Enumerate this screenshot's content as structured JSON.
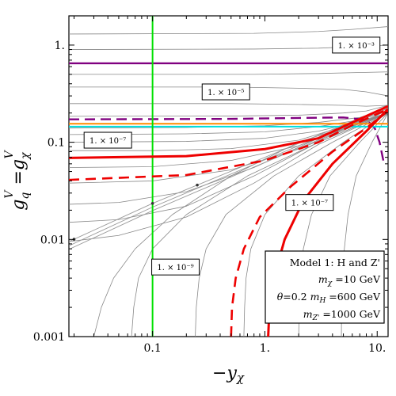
{
  "chart_data": {
    "type": "line",
    "x_scale": "log",
    "y_scale": "log",
    "xlim": [
      0.018,
      12.5
    ],
    "ylim": [
      0.001,
      2.0
    ],
    "xlabel": "−yχ",
    "ylabel": "gqV = gχV",
    "x_ticks": [
      {
        "value": 0.1,
        "label": "0.1"
      },
      {
        "value": 1,
        "label": "1."
      },
      {
        "value": 10,
        "label": "10."
      }
    ],
    "y_ticks": [
      {
        "value": 0.001,
        "label": "0.001"
      },
      {
        "value": 0.01,
        "label": "0.01"
      },
      {
        "value": 0.1,
        "label": "0.1"
      },
      {
        "value": 1,
        "label": "1."
      }
    ],
    "grid": false,
    "contour_labels": [
      {
        "text": "1. × 10⁻³",
        "x": 6.5,
        "y": 1.0
      },
      {
        "text": "1. × 10⁻⁵",
        "x": 0.45,
        "y": 0.33
      },
      {
        "text": "1. × 10⁻⁷",
        "x": 0.04,
        "y": 0.105
      },
      {
        "text": "1. × 10⁻⁷",
        "x": 2.5,
        "y": 0.024
      },
      {
        "text": "1. × 10⁻⁹",
        "x": 0.16,
        "y": 0.0052
      }
    ],
    "legend": {
      "placement": "bottom-right",
      "lines": [
        "Model 1: H and Z'",
        "mχ =10 GeV",
        "θ=0.2 mH =600 GeV",
        "mZ' =1000 GeV"
      ]
    },
    "series": [
      {
        "style": "gray-thin",
        "color": "#888888",
        "x": [
          0.018,
          0.8,
          3,
          6,
          12.5
        ],
        "y": [
          1.3,
          1.32,
          1.38,
          1.45,
          1.55
        ]
      },
      {
        "style": "gray-thin",
        "color": "#888888",
        "x": [
          0.018,
          0.8,
          3,
          6,
          12.5
        ],
        "y": [
          0.9,
          0.91,
          0.93,
          0.96,
          1.0
        ]
      },
      {
        "style": "gray-thin",
        "color": "#888888",
        "x": [
          0.018,
          0.8,
          3,
          6,
          12.5
        ],
        "y": [
          0.5,
          0.5,
          0.51,
          0.52,
          0.53
        ]
      },
      {
        "style": "gray-thin",
        "color": "#888888",
        "x": [
          0.018,
          0.5,
          2,
          5,
          8,
          12.5
        ],
        "y": [
          0.37,
          0.37,
          0.36,
          0.35,
          0.33,
          0.3
        ]
      },
      {
        "style": "gray-thin",
        "color": "#888888",
        "x": [
          0.018,
          0.5,
          2,
          5,
          8,
          12.5
        ],
        "y": [
          0.25,
          0.25,
          0.245,
          0.24,
          0.235,
          0.24
        ]
      },
      {
        "style": "gray-thin",
        "color": "#888888",
        "x": [
          0.018,
          0.5,
          2,
          5,
          8,
          12.5
        ],
        "y": [
          0.185,
          0.186,
          0.19,
          0.2,
          0.21,
          0.24
        ]
      },
      {
        "style": "gray-thin",
        "color": "#888888",
        "x": [
          0.018,
          0.2,
          1,
          3,
          7,
          12.5
        ],
        "y": [
          0.14,
          0.142,
          0.148,
          0.16,
          0.18,
          0.22
        ]
      },
      {
        "style": "gray-thin",
        "color": "#888888",
        "x": [
          0.018,
          0.2,
          1,
          3,
          7,
          12.5
        ],
        "y": [
          0.12,
          0.122,
          0.128,
          0.145,
          0.17,
          0.21
        ]
      },
      {
        "style": "gray-thin",
        "color": "#888888",
        "x": [
          0.018,
          0.2,
          1,
          3,
          7,
          12.5
        ],
        "y": [
          0.1,
          0.102,
          0.11,
          0.13,
          0.165,
          0.2
        ]
      },
      {
        "style": "gray-thin",
        "color": "#888888",
        "x": [
          0.018,
          0.1,
          0.5,
          2,
          6,
          12.5
        ],
        "y": [
          0.082,
          0.082,
          0.086,
          0.105,
          0.155,
          0.2
        ]
      },
      {
        "style": "gray-thin",
        "color": "#888888",
        "x": [
          0.018,
          0.1,
          0.5,
          2,
          6,
          12.5
        ],
        "y": [
          0.055,
          0.056,
          0.065,
          0.092,
          0.15,
          0.2
        ]
      },
      {
        "style": "gray-thin",
        "color": "#888888",
        "x": [
          0.018,
          0.1,
          0.5,
          2,
          6,
          12.5
        ],
        "y": [
          0.038,
          0.04,
          0.052,
          0.085,
          0.145,
          0.2
        ]
      },
      {
        "style": "gray-thin",
        "color": "#888888",
        "x": [
          0.018,
          0.05,
          0.2,
          0.8,
          3,
          12.5
        ],
        "y": [
          0.023,
          0.024,
          0.031,
          0.055,
          0.11,
          0.2
        ]
      },
      {
        "style": "gray-thin",
        "color": "#888888",
        "x": [
          0.018,
          0.05,
          0.2,
          0.8,
          3,
          12.5
        ],
        "y": [
          0.015,
          0.016,
          0.022,
          0.045,
          0.1,
          0.2
        ]
      },
      {
        "style": "gray-thin",
        "color": "#888888",
        "x": [
          0.018,
          0.05,
          0.2,
          0.8,
          3,
          12.5
        ],
        "y": [
          0.0095,
          0.011,
          0.017,
          0.038,
          0.095,
          0.2
        ]
      },
      {
        "style": "gray-thin",
        "color": "#888888",
        "x": [
          0.03,
          0.035,
          0.045,
          0.07,
          0.15,
          0.5,
          2,
          12.5
        ],
        "y": [
          0.001,
          0.002,
          0.004,
          0.008,
          0.018,
          0.045,
          0.1,
          0.2
        ]
      },
      {
        "style": "gray-thin",
        "color": "#888888",
        "x": [
          0.065,
          0.068,
          0.075,
          0.1,
          0.2,
          0.7,
          3,
          12.5
        ],
        "y": [
          0.001,
          0.002,
          0.004,
          0.008,
          0.018,
          0.045,
          0.1,
          0.2
        ]
      },
      {
        "style": "gray-thin",
        "color": "#888888",
        "x": [
          0.24,
          0.245,
          0.26,
          0.3,
          0.45,
          1.2,
          4,
          12.5
        ],
        "y": [
          0.001,
          0.002,
          0.004,
          0.008,
          0.018,
          0.045,
          0.1,
          0.2
        ]
      },
      {
        "style": "gray-thin",
        "color": "#888888",
        "x": [
          0.65,
          0.66,
          0.68,
          0.75,
          1,
          2,
          5,
          12.5
        ],
        "y": [
          0.001,
          0.002,
          0.004,
          0.008,
          0.018,
          0.045,
          0.1,
          0.2
        ]
      },
      {
        "style": "gray-thin",
        "color": "#888888",
        "x": [
          2.0,
          2.02,
          2.08,
          2.2,
          2.6,
          3.8,
          7,
          12.5
        ],
        "y": [
          0.001,
          0.002,
          0.004,
          0.008,
          0.018,
          0.045,
          0.1,
          0.2
        ]
      },
      {
        "style": "gray-thin",
        "color": "#888888",
        "x": [
          4.8,
          4.82,
          4.9,
          5.1,
          5.5,
          6.5,
          9,
          12.5
        ],
        "y": [
          0.001,
          0.002,
          0.004,
          0.008,
          0.018,
          0.045,
          0.1,
          0.2
        ]
      },
      {
        "style": "gray-band",
        "color": "#999999",
        "x": [
          0.018,
          0.1,
          1,
          10,
          12.5
        ],
        "y": [
          0.0095,
          0.0235,
          0.07,
          0.21,
          0.235
        ]
      },
      {
        "style": "gray-band",
        "color": "#999999",
        "x": [
          0.018,
          0.1,
          1,
          10,
          12.5
        ],
        "y": [
          0.0086,
          0.0215,
          0.066,
          0.2,
          0.225
        ]
      },
      {
        "style": "gray-band",
        "color": "#999999",
        "x": [
          0.018,
          0.1,
          1,
          10,
          12.5
        ],
        "y": [
          0.0079,
          0.0198,
          0.062,
          0.19,
          0.215
        ]
      },
      {
        "style": "purple-solid",
        "color": "#800080",
        "x": [
          0.018,
          12.5
        ],
        "y": [
          0.65,
          0.65
        ]
      },
      {
        "style": "purple-dashed",
        "color": "#800080",
        "x": [
          0.018,
          0.5,
          2,
          5,
          8,
          9.5,
          10.5,
          11.5
        ],
        "y": [
          0.172,
          0.174,
          0.178,
          0.18,
          0.17,
          0.14,
          0.1,
          0.06
        ]
      },
      {
        "style": "orange",
        "color": "#ff8c00",
        "x": [
          0.018,
          12.5
        ],
        "y": [
          0.155,
          0.155
        ]
      },
      {
        "style": "cyan",
        "color": "#00e0e0",
        "x": [
          0.018,
          12.5
        ],
        "y": [
          0.145,
          0.145
        ]
      },
      {
        "style": "green",
        "color": "#00e000",
        "x": [
          0.1,
          0.1
        ],
        "y": [
          0.001,
          2.0
        ]
      },
      {
        "style": "red-solid",
        "color": "#ee0000",
        "x": [
          0.018,
          0.2,
          1,
          3,
          6,
          12.5
        ],
        "y": [
          0.069,
          0.072,
          0.085,
          0.11,
          0.16,
          0.235
        ]
      },
      {
        "style": "red-solid",
        "color": "#ee0000",
        "x": [
          1.07,
          1.1,
          1.2,
          1.5,
          2.2,
          4,
          8,
          12.5
        ],
        "y": [
          0.001,
          0.002,
          0.004,
          0.01,
          0.025,
          0.06,
          0.13,
          0.22
        ]
      },
      {
        "style": "red-dashed",
        "color": "#ee0000",
        "x": [
          0.018,
          0.2,
          1,
          3,
          6,
          12.5
        ],
        "y": [
          0.041,
          0.046,
          0.065,
          0.1,
          0.15,
          0.22
        ]
      },
      {
        "style": "red-dashed",
        "color": "#ee0000",
        "x": [
          0.5,
          0.51,
          0.55,
          0.65,
          0.9,
          1.7,
          4,
          8,
          12.5
        ],
        "y": [
          0.001,
          0.002,
          0.004,
          0.008,
          0.017,
          0.035,
          0.08,
          0.14,
          0.21
        ]
      }
    ]
  }
}
